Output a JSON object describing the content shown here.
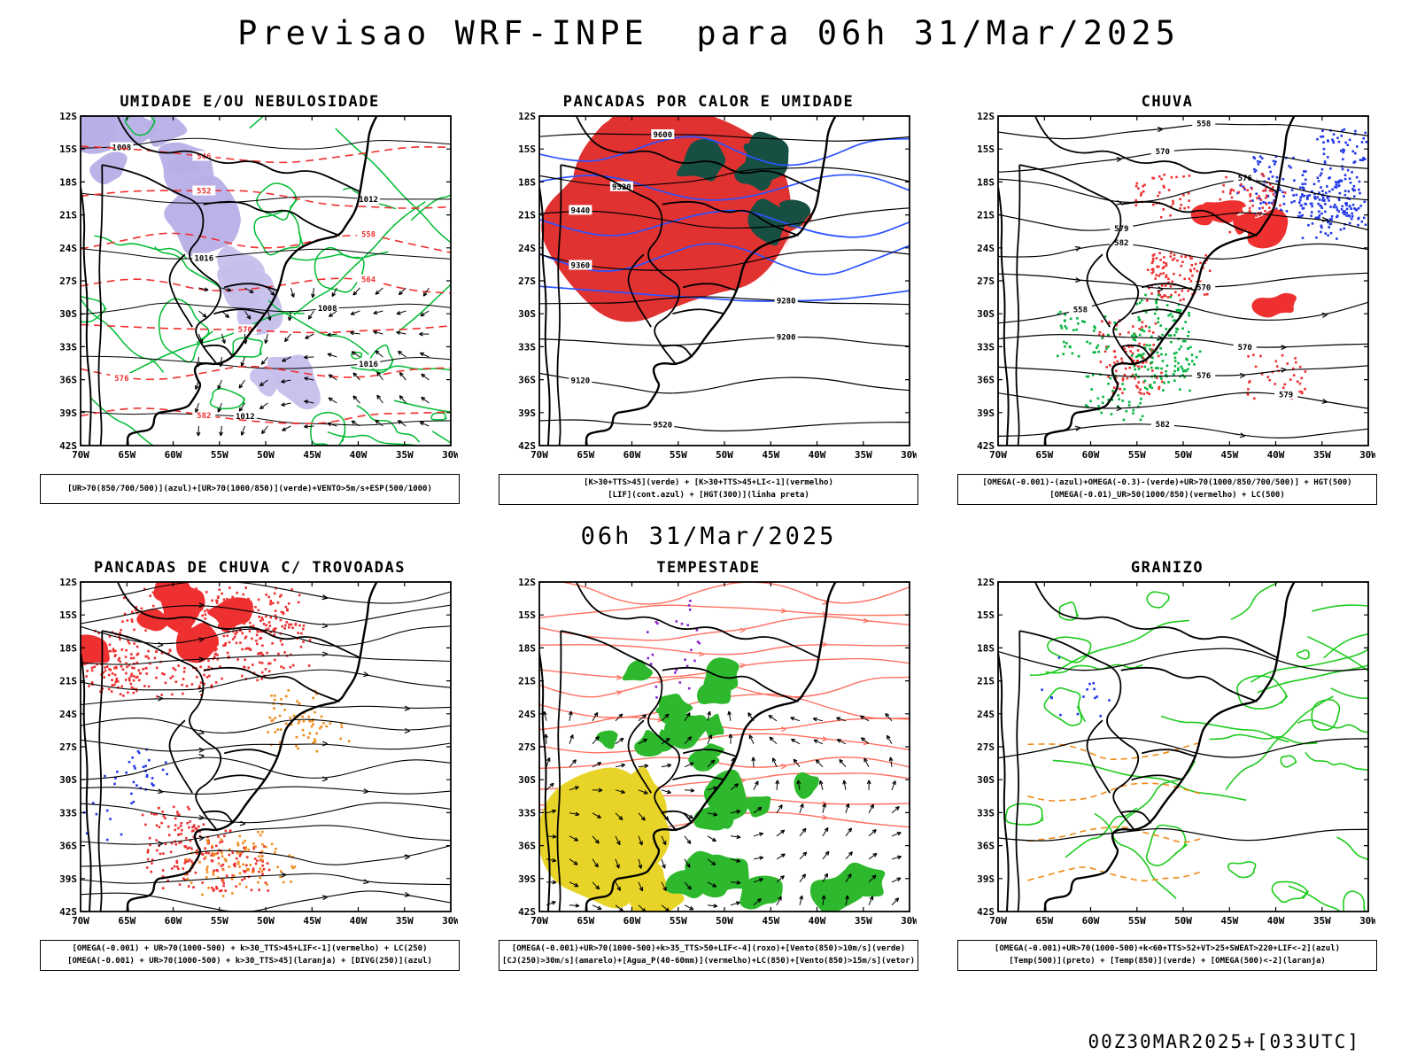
{
  "page": {
    "title": "Previsao WRF-INPE  para 06h 31/Mar/2025",
    "center_label": "06h 31/Mar/2025",
    "footer_label": "00Z30MAR2025+[033UTC]"
  },
  "axes": {
    "lat_ticks": [
      "12S",
      "15S",
      "18S",
      "21S",
      "24S",
      "27S",
      "30S",
      "33S",
      "36S",
      "39S",
      "42S"
    ],
    "lon_ticks": [
      "70W",
      "65W",
      "60W",
      "55W",
      "50W",
      "45W",
      "40W",
      "35W",
      "30W"
    ]
  },
  "panels": [
    {
      "id": "umidade-nebulosidade",
      "title": "UMIDADE E/OU NEBULOSIDADE",
      "caption_lines": [
        "[UR>70(850/700/500)](azul)+[UR>70(1000/850)](verde)+VENTO>5m/s+ESP(500/1000)"
      ],
      "layers": [
        {
          "name": "ur-850-700-500-azul-shading",
          "style": "fill-patches",
          "color": "#b7afe7",
          "region": [
            0.02,
            0.0,
            0.5,
            0.42
          ],
          "count": 7,
          "size": 0.085,
          "opacity": 0.95
        },
        {
          "name": "ur-850-700-500-azul-shading-sul",
          "style": "fill-patches",
          "color": "#c6bfec",
          "region": [
            0.3,
            0.42,
            0.62,
            0.92
          ],
          "count": 5,
          "size": 0.06,
          "opacity": 0.95
        },
        {
          "name": "ur-1000-850-verde-contornos",
          "style": "contour-web",
          "color": "#00bb33",
          "region": [
            0,
            0,
            1,
            1
          ],
          "count": 30,
          "width": 1.5
        },
        {
          "name": "pressao-isolinhas-pretas",
          "style": "isolines",
          "color": "#000000",
          "count": 6,
          "width": 1,
          "region": [
            0,
            0,
            1,
            1
          ],
          "labels": [
            "1008",
            "1012",
            "1016",
            "1008",
            "1016",
            "1012"
          ],
          "amp": 14
        },
        {
          "name": "esp-500-1000-vermelha-tracejada",
          "style": "isolines",
          "color": "#f03030",
          "count": 7,
          "width": 1.6,
          "dash": "9 6",
          "region": [
            0,
            0.05,
            1,
            0.98
          ],
          "labels": [
            "546",
            "552",
            "558",
            "564",
            "570",
            "576",
            "582"
          ],
          "amp": 16
        },
        {
          "name": "vento-vetores",
          "style": "vector-field",
          "color": "#000000",
          "region": [
            0.3,
            0.5,
            1.0,
            1.0
          ]
        }
      ]
    },
    {
      "id": "pancadas-calor-umidade",
      "title": "PANCADAS POR CALOR E UMIDADE",
      "caption_lines": [
        "[K>30+TTS>45](verde) + [K>30+TTS>45+LI<-1](vermelho)",
        "[LIF](cont.azul) + [HGT(300)](linha preta)"
      ],
      "layers": [
        {
          "name": "k30-tts45-li-vermelho",
          "style": "fill-large",
          "color": "#e13232",
          "region": [
            0.0,
            0.0,
            0.68,
            0.62
          ]
        },
        {
          "name": "k30-tts45-verde-escuro",
          "style": "fill-patches",
          "color": "#174f42",
          "region": [
            0.42,
            0.05,
            0.72,
            0.32
          ],
          "count": 6,
          "size": 0.055
        },
        {
          "name": "lif-contorno-azul",
          "style": "isolines",
          "color": "#2b52ff",
          "count": 5,
          "width": 1.7,
          "region": [
            0.0,
            0.05,
            1.0,
            0.6
          ],
          "amp": 26
        },
        {
          "name": "hgt300-linha-preta",
          "style": "isolines",
          "color": "#000000",
          "count": 8,
          "width": 1.2,
          "region": [
            0,
            0,
            1,
            1
          ],
          "labels": [
            "9600",
            "9520",
            "9440",
            "9360",
            "9280",
            "9200",
            "9120",
            "9520"
          ],
          "amp": 18
        }
      ]
    },
    {
      "id": "chuva",
      "title": "CHUVA",
      "caption_lines": [
        "[OMEGA(-0.001)-(azul)+OMEGA(-0.3)-(verde)+UR>70(1000/850/700/500)] + HGT(500)",
        "[OMEGA(-0.01)_UR>50(1000/850)(vermelho) + LC(500)"
      ],
      "layers": [
        {
          "name": "omega-azul-pontos",
          "style": "speckles",
          "color": "#2238e8",
          "region": [
            0.02,
            0.0,
            1.0,
            0.32
          ],
          "count": 320
        },
        {
          "name": "ur50-vermelho-pontos",
          "style": "speckles",
          "color": "#ee3030",
          "region": [
            0.12,
            0.2,
            1.0,
            0.85
          ],
          "count": 380
        },
        {
          "name": "chuva-vermelha-manchas",
          "style": "fill-patches",
          "color": "#ee3030",
          "region": [
            0.5,
            0.28,
            0.78,
            0.58
          ],
          "count": 5,
          "size": 0.045
        },
        {
          "name": "omega-verde-pontos",
          "style": "speckles",
          "color": "#00b43c",
          "region": [
            0.18,
            0.35,
            0.52,
            0.95
          ],
          "count": 240
        },
        {
          "name": "hgt500-linha-preta",
          "style": "isolines",
          "color": "#000000",
          "count": 11,
          "width": 1.2,
          "region": [
            0,
            0,
            1,
            1
          ],
          "arrows": true,
          "labels": [
            "558",
            "570",
            "576",
            "579",
            "582",
            "570"
          ],
          "amp": 20
        }
      ]
    },
    {
      "id": "pancadas-chuva-trovoadas",
      "title": "PANCADAS DE CHUVA C/ TROVOADAS",
      "caption_lines": [
        "[OMEGA(-0.001) + UR>70(1000-500) + k>30_TTS>45+LIF<-1](vermelho) + LC(250)",
        "[OMEGA(-0.001) + UR>70(1000-500) + k>30_TTS>45](laranja) + [DIVG(250)](azul)"
      ],
      "layers": [
        {
          "name": "vermelho-trovoadas-pontos",
          "style": "speckles",
          "color": "#ee3030",
          "region": [
            0.0,
            0.0,
            0.55,
            0.28
          ],
          "count": 520
        },
        {
          "name": "vermelho-manchas",
          "style": "fill-patches",
          "color": "#ee3030",
          "region": [
            0.02,
            0.0,
            0.45,
            0.22
          ],
          "count": 7,
          "size": 0.045
        },
        {
          "name": "vermelho-sul-pontos",
          "style": "speckles",
          "color": "#ee3030",
          "region": [
            0.22,
            0.45,
            0.48,
            0.92
          ],
          "count": 200
        },
        {
          "name": "laranja-pontos",
          "style": "speckles",
          "color": "#f08a18",
          "region": [
            0.5,
            0.28,
            0.68,
            0.45
          ],
          "count": 70
        },
        {
          "name": "laranja-sul-pontos",
          "style": "speckles",
          "color": "#f08a18",
          "region": [
            0.34,
            0.62,
            0.52,
            0.95
          ],
          "count": 90
        },
        {
          "name": "divg-azul-pontos",
          "style": "speckles",
          "color": "#2238e8",
          "region": [
            0.04,
            0.55,
            0.2,
            0.72
          ],
          "count": 40
        },
        {
          "name": "lc250-linhas-corrente",
          "style": "isolines",
          "color": "#000000",
          "count": 15,
          "width": 1.1,
          "region": [
            0,
            0,
            1,
            1
          ],
          "arrows": true,
          "amp": 18
        }
      ]
    },
    {
      "id": "tempestade",
      "title": "TEMPESTADE",
      "caption_lines": [
        "[OMEGA(-0.001)+UR>70(1000-500)+k>35_TTS>50+LIF<-4](roxo)+[Vento(850)>10m/s](verde)",
        "[CJ(250)>30m/s](amarelo)+[Agua_P(40-60mm)](vermelho)+LC(850)+[Vento(850)>15m/s](vetor)"
      ],
      "layers": [
        {
          "name": "lc850-linhas-salmao",
          "style": "isolines",
          "color": "#ff7060",
          "count": 13,
          "width": 1.4,
          "region": [
            0.0,
            0.0,
            1.0,
            0.75
          ],
          "arrows": true,
          "amp": 22
        },
        {
          "name": "cj250-amarelo",
          "style": "fill-large",
          "color": "#e8d428",
          "region": [
            0.0,
            0.56,
            0.34,
            1.0
          ]
        },
        {
          "name": "vento850-verde",
          "style": "fill-patches",
          "color": "#2eb82e",
          "region": [
            0.16,
            0.22,
            0.5,
            0.6
          ],
          "count": 12,
          "size": 0.04
        },
        {
          "name": "vento850-verde-sul",
          "style": "fill-patches",
          "color": "#2eb82e",
          "region": [
            0.38,
            0.6,
            0.95,
            0.95
          ],
          "count": 12,
          "size": 0.05
        },
        {
          "name": "roxo-pontos",
          "style": "speckles",
          "color": "#8822cc",
          "region": [
            0.3,
            0.1,
            0.45,
            0.3
          ],
          "count": 25
        },
        {
          "name": "vento850-vetores",
          "style": "vector-field",
          "color": "#000000",
          "region": [
            0.0,
            0.4,
            1.0,
            1.0
          ]
        }
      ]
    },
    {
      "id": "granizo",
      "title": "GRANIZO",
      "caption_lines": [
        "[OMEGA(-0.001)+UR>70(1000-500)+k<60+TTS>52+VT>25+SWEAT>220+LIF<-2](azul)",
        "[Temp(500)](preto) + [Temp(850)](verde) + [OMEGA(500)<-2](laranja)"
      ],
      "layers": [
        {
          "name": "temp850-verde-contornos",
          "style": "contour-web",
          "color": "#1ecb1e",
          "region": [
            0,
            0,
            1,
            1
          ],
          "count": 34,
          "width": 1.6
        },
        {
          "name": "omega-laranja-tracejada",
          "style": "isolines",
          "color": "#f08a18",
          "count": 4,
          "width": 1.6,
          "dash": "7 5",
          "region": [
            0.08,
            0.45,
            0.55,
            0.95
          ],
          "amp": 14
        },
        {
          "name": "temp500-linha-preta",
          "style": "isolines",
          "color": "#000000",
          "count": 3,
          "width": 1.3,
          "region": [
            0.0,
            0.1,
            1.0,
            0.9
          ],
          "amp": 24
        },
        {
          "name": "azul-pontos",
          "style": "speckles",
          "color": "#2238e8",
          "region": [
            0.1,
            0.2,
            0.3,
            0.4
          ],
          "count": 15
        }
      ]
    }
  ]
}
